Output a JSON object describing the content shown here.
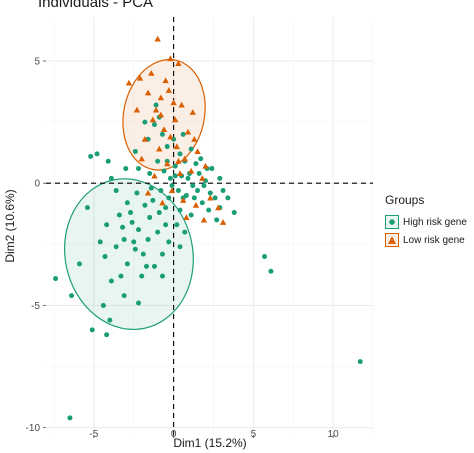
{
  "chart_data": {
    "type": "scatter",
    "title": "Individuals - PCA",
    "xlabel": "Dim1 (15.2%)",
    "ylabel": "Dim2 (10.6%)",
    "xlim": [
      -8,
      12.5
    ],
    "ylim": [
      -10.3,
      6.8
    ],
    "xticks": [
      -5,
      0,
      5,
      10
    ],
    "yticks": [
      -10,
      -5,
      0,
      5
    ],
    "grid": true,
    "legend": {
      "title": "Groups",
      "position": "right"
    },
    "series": [
      {
        "name": "High risk gene",
        "color": "#1b9e77",
        "marker": "circle",
        "ellipse": {
          "center": [
            -2.8,
            -2.9
          ],
          "semi_axes": [
            4.0,
            3.1
          ],
          "angle_deg": 12
        },
        "points": [
          [
            -6.5,
            -9.6
          ],
          [
            11.7,
            -7.3
          ],
          [
            -4.2,
            -6.2
          ],
          [
            -5.1,
            -6.0
          ],
          [
            -7.4,
            -3.9
          ],
          [
            -6.4,
            -4.6
          ],
          [
            -4.4,
            -5.0
          ],
          [
            6.1,
            -3.6
          ],
          [
            5.7,
            -3.0
          ],
          [
            -5.9,
            -3.3
          ],
          [
            -4.3,
            -3.0
          ],
          [
            -3.9,
            -4.0
          ],
          [
            -3.3,
            -3.8
          ],
          [
            -2.9,
            -3.3
          ],
          [
            -3.6,
            -2.6
          ],
          [
            -3.1,
            -2.3
          ],
          [
            -2.4,
            -2.7
          ],
          [
            -2.2,
            -1.9
          ],
          [
            -1.9,
            -2.9
          ],
          [
            -2.6,
            -1.6
          ],
          [
            -3.4,
            -1.3
          ],
          [
            -1.6,
            -2.3
          ],
          [
            -1.5,
            -1.4
          ],
          [
            -2.9,
            -0.8
          ],
          [
            -4.2,
            -1.7
          ],
          [
            -1.2,
            -3.4
          ],
          [
            -2.0,
            -3.8
          ],
          [
            -1.0,
            -2.0
          ],
          [
            -0.7,
            -2.9
          ],
          [
            -0.3,
            -2.4
          ],
          [
            0.4,
            -2.6
          ],
          [
            -0.5,
            -1.7
          ],
          [
            -1.3,
            -0.7
          ],
          [
            -2.3,
            -0.4
          ],
          [
            -3.6,
            -0.3
          ],
          [
            -3.9,
            0.2
          ],
          [
            -4.8,
            1.2
          ],
          [
            -5.2,
            1.1
          ],
          [
            -4.1,
            0.9
          ],
          [
            -2.4,
            1.3
          ],
          [
            -2.2,
            0.6
          ],
          [
            -1.5,
            0.4
          ],
          [
            -1.0,
            0.9
          ],
          [
            -0.6,
            0.5
          ],
          [
            -0.2,
            0.2
          ],
          [
            0.1,
            0.7
          ],
          [
            0.5,
            0.3
          ],
          [
            0.9,
            0.2
          ],
          [
            1.2,
            -0.1
          ],
          [
            1.6,
            0.4
          ],
          [
            2.0,
            0.1
          ],
          [
            2.3,
            -0.4
          ],
          [
            1.8,
            -0.8
          ],
          [
            1.3,
            -0.6
          ],
          [
            0.8,
            -0.5
          ],
          [
            0.3,
            -0.3
          ],
          [
            -0.3,
            -0.6
          ],
          [
            -0.8,
            -0.3
          ],
          [
            0.4,
            -1.1
          ],
          [
            1.1,
            -1.3
          ],
          [
            2.6,
            -0.6
          ],
          [
            2.9,
            -1.0
          ],
          [
            3.1,
            -0.3
          ],
          [
            2.4,
            0.6
          ],
          [
            1.7,
            1.0
          ],
          [
            1.1,
            1.4
          ],
          [
            0.4,
            1.2
          ],
          [
            -0.4,
            1.5
          ],
          [
            -0.7,
            2.0
          ],
          [
            -1.2,
            2.4
          ],
          [
            -1.6,
            1.8
          ],
          [
            -0.9,
            2.7
          ],
          [
            -1.8,
            2.5
          ],
          [
            -1.1,
            3.2
          ],
          [
            0.6,
            2.0
          ],
          [
            1.4,
            0.8
          ],
          [
            2.1,
            0.6
          ],
          [
            3.4,
            -0.6
          ],
          [
            3.8,
            -1.2
          ],
          [
            2.7,
            -1.5
          ],
          [
            0.2,
            -1.7
          ],
          [
            -0.9,
            -1.2
          ],
          [
            -1.8,
            -0.9
          ],
          [
            -2.7,
            -1.2
          ],
          [
            -3.2,
            -1.8
          ],
          [
            -2.5,
            -2.4
          ],
          [
            -1.7,
            -3.4
          ],
          [
            -0.7,
            -3.8
          ],
          [
            0.7,
            -2.0
          ],
          [
            -4.6,
            -2.4
          ],
          [
            -3.1,
            -4.6
          ],
          [
            -2.2,
            -4.9
          ],
          [
            -5.4,
            -1.0
          ],
          [
            -3.0,
            0.6
          ],
          [
            -0.1,
            -0.1
          ],
          [
            0.6,
            -0.6
          ],
          [
            1.5,
            -0.3
          ],
          [
            -0.4,
            0.9
          ],
          [
            0.0,
            1.8
          ],
          [
            2.9,
            0.2
          ],
          [
            -4.0,
            -5.6
          ],
          [
            0.1,
            0.3
          ],
          [
            0.7,
            0.9
          ],
          [
            1.9,
            -0.1
          ],
          [
            -1.4,
            -0.2
          ],
          [
            2.2,
            -1.1
          ],
          [
            -0.5,
            -1.0
          ],
          [
            1.0,
            0.4
          ]
        ]
      },
      {
        "name": "Low risk gene",
        "color": "#d95f02",
        "marker": "triangle",
        "ellipse": {
          "center": [
            -0.6,
            2.8
          ],
          "semi_axes": [
            3.5,
            1.65
          ],
          "angle_deg": 78
        },
        "points": [
          [
            -1.0,
            5.9
          ],
          [
            -0.2,
            5.1
          ],
          [
            -2.1,
            4.3
          ],
          [
            -2.8,
            4.1
          ],
          [
            0.3,
            4.9
          ],
          [
            -1.6,
            3.7
          ],
          [
            -0.8,
            3.5
          ],
          [
            -0.3,
            3.8
          ],
          [
            0.5,
            3.2
          ],
          [
            -2.3,
            3.0
          ],
          [
            -1.3,
            2.6
          ],
          [
            -0.6,
            2.2
          ],
          [
            0.1,
            2.6
          ],
          [
            0.9,
            2.1
          ],
          [
            1.2,
            2.9
          ],
          [
            -1.8,
            1.8
          ],
          [
            -0.9,
            1.4
          ],
          [
            0.2,
            1.5
          ],
          [
            0.7,
            1.0
          ],
          [
            1.5,
            1.3
          ],
          [
            -0.4,
            0.8
          ],
          [
            0.4,
            0.4
          ],
          [
            1.1,
            0.5
          ],
          [
            1.8,
            0.2
          ],
          [
            -1.2,
            0.3
          ],
          [
            -0.1,
            -0.3
          ],
          [
            0.6,
            -0.7
          ],
          [
            1.4,
            -0.9
          ],
          [
            2.3,
            -0.6
          ],
          [
            2.8,
            -1.0
          ],
          [
            3.1,
            -1.6
          ],
          [
            1.9,
            -1.5
          ],
          [
            0.8,
            -1.4
          ],
          [
            -0.7,
            -0.8
          ],
          [
            -1.6,
            -0.4
          ],
          [
            -2.0,
            1.0
          ],
          [
            -1.4,
            4.5
          ],
          [
            -0.5,
            4.2
          ],
          [
            0.0,
            3.3
          ],
          [
            -1.1,
            3.0
          ],
          [
            -0.2,
            1.9
          ],
          [
            0.3,
            0.9
          ],
          [
            1.3,
            1.8
          ],
          [
            2.0,
            0.7
          ],
          [
            -0.8,
            2.8
          ]
        ]
      }
    ]
  }
}
